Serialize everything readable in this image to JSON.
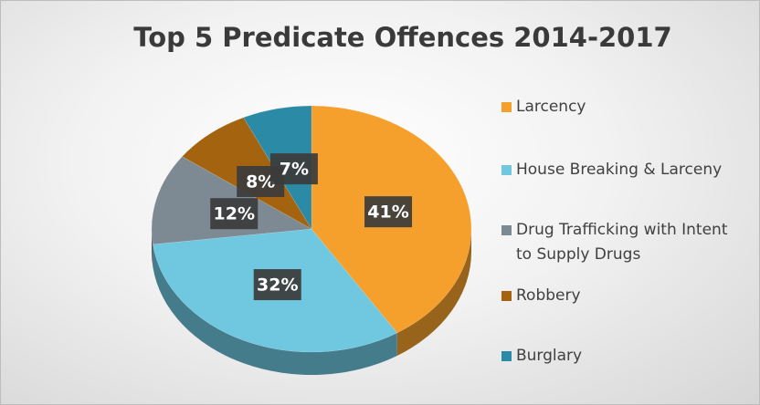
{
  "chart_data": {
    "type": "pie3d",
    "title": "Top 5 Predicate Offences 2014-2017",
    "categories": [
      "Larcency",
      "House Breaking & Larceny",
      "Drug Trafficking with Intent to Supply Drugs",
      "Robbery",
      "Burglary"
    ],
    "values": [
      41,
      32,
      12,
      8,
      7
    ],
    "value_labels": [
      "41%",
      "32%",
      "12%",
      "8%",
      "7%"
    ],
    "colors": [
      "#f5a02c",
      "#70c8e0",
      "#7d8a94",
      "#a4640f",
      "#2b8ba6"
    ],
    "legend": "right"
  }
}
